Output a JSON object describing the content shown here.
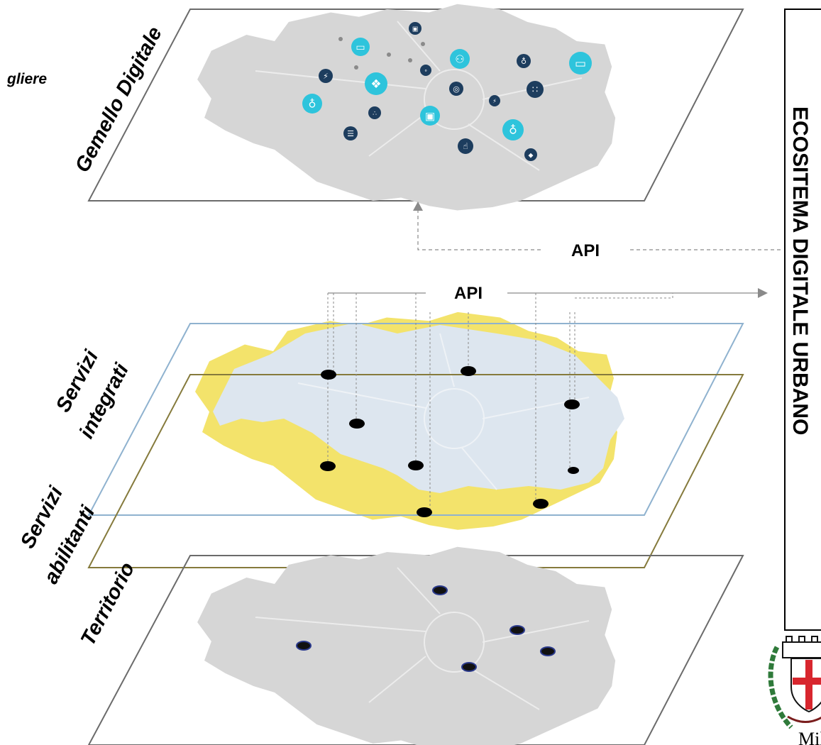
{
  "layers": {
    "gemello": "Gemello Digitale",
    "integrati_line1": "Servizi",
    "integrati_line2": "integrati",
    "abilitanti_line1": "Servizi",
    "abilitanti_line2": "abilitanti",
    "territorio": "Territorio"
  },
  "api_top": "API",
  "api_mid": "API",
  "ecosystem_title": "ECOSITEMA DIGITALE URBANO",
  "corner_label": "gliere",
  "city_name": "Mila",
  "colors": {
    "map_grey": "#d6d6d6",
    "map_lightblue": "#dde6ef",
    "map_yellow": "#f3e36b",
    "icon_teal": "#2ec4dc",
    "icon_navy": "#1d3d5e",
    "frame_blue": "#8fb2cf",
    "frame_olive": "#857a3c",
    "frame_grey": "#6b6b6b"
  },
  "icons": [
    "train-icon",
    "bus-icon",
    "people-icon",
    "bike-icon",
    "bus-icon",
    "plug-icon",
    "ev-car-icon",
    "scooter-icon",
    "globe-icon",
    "car-share-icon",
    "bike-icon",
    "network-icon",
    "train-icon",
    "ev-plug-icon",
    "bike-icon",
    "charging-icon",
    "thumbs-up-icon",
    "car-icon"
  ]
}
